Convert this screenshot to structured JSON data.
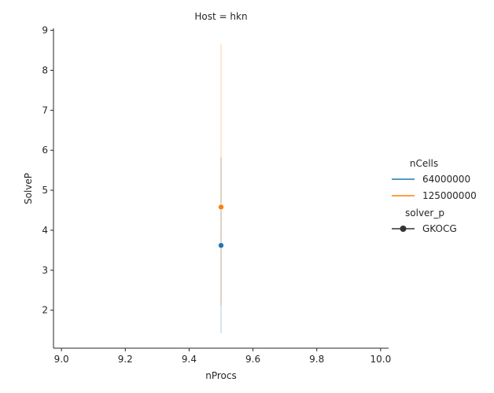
{
  "chart_data": {
    "type": "line",
    "facet_title": "Host = hkn",
    "xlabel": "nProcs",
    "ylabel": "SolveP",
    "xlim": [
      8.975,
      10.025
    ],
    "ylim": [
      1.05,
      9.05
    ],
    "xticks": [
      9.0,
      9.2,
      9.4,
      9.6,
      9.8,
      10.0
    ],
    "xtick_labels": [
      "9.0",
      "9.2",
      "9.4",
      "9.6",
      "9.8",
      "10.0"
    ],
    "yticks": [
      2,
      3,
      4,
      5,
      6,
      7,
      8,
      9
    ],
    "ytick_labels": [
      "2",
      "3",
      "4",
      "5",
      "6",
      "7",
      "8",
      "9"
    ],
    "grid": false,
    "legend_placement": "right",
    "legend": {
      "hue_title": "nCells",
      "style_title": "solver_p",
      "style_entries": [
        {
          "label": "GKOCG",
          "color": "#333333",
          "marker": "circle"
        }
      ]
    },
    "series": [
      {
        "name": "64000000",
        "color": "#1f77b4",
        "x": [
          9.5
        ],
        "y": [
          3.62
        ],
        "ci_low": [
          1.42
        ],
        "ci_high": [
          5.82
        ]
      },
      {
        "name": "125000000",
        "color": "#ff7f0e",
        "x": [
          9.5
        ],
        "y": [
          4.58
        ],
        "ci_low": [
          2.12
        ],
        "ci_high": [
          8.66
        ]
      }
    ]
  }
}
